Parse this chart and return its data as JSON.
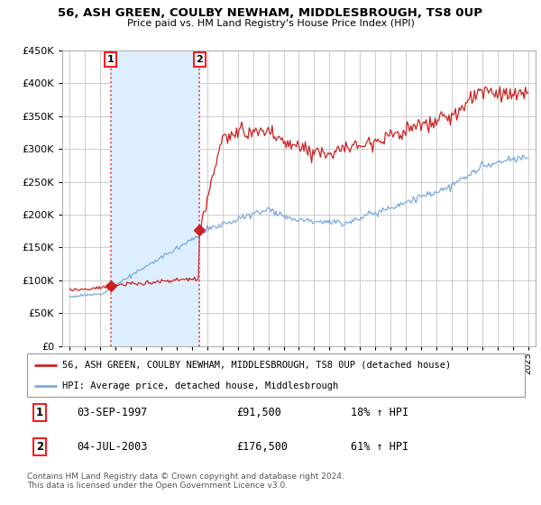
{
  "title1": "56, ASH GREEN, COULBY NEWHAM, MIDDLESBROUGH, TS8 0UP",
  "title2": "Price paid vs. HM Land Registry's House Price Index (HPI)",
  "legend1": "56, ASH GREEN, COULBY NEWHAM, MIDDLESBROUGH, TS8 0UP (detached house)",
  "legend2": "HPI: Average price, detached house, Middlesbrough",
  "annotation1_date": "03-SEP-1997",
  "annotation1_price": "£91,500",
  "annotation1_hpi": "18% ↑ HPI",
  "annotation2_date": "04-JUL-2003",
  "annotation2_price": "£176,500",
  "annotation2_hpi": "61% ↑ HPI",
  "footer": "Contains HM Land Registry data © Crown copyright and database right 2024.\nThis data is licensed under the Open Government Licence v3.0.",
  "sale1_year": 1997.67,
  "sale1_price": 91500,
  "sale2_year": 2003.5,
  "sale2_price": 176500,
  "red_color": "#cc2222",
  "blue_color": "#7aaadd",
  "shade_color": "#ddeeff",
  "dashed_color": "#dd4444",
  "bg_color": "#ffffff",
  "grid_color": "#cccccc",
  "ylim_min": 0,
  "ylim_max": 450000,
  "xlim_min": 1994.5,
  "xlim_max": 2025.5,
  "n_points": 361,
  "year_start": 1995,
  "year_end": 2025
}
